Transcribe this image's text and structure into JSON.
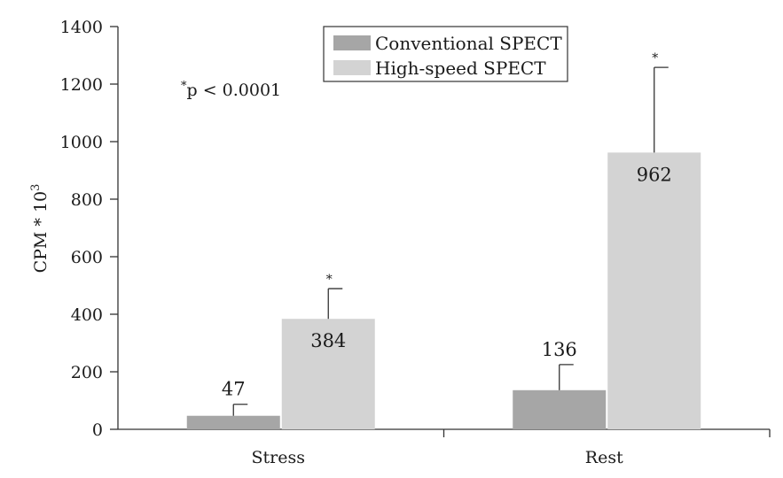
{
  "chart_data": {
    "type": "bar",
    "categories": [
      "Stress",
      "Rest"
    ],
    "series": [
      {
        "name": "Conventional SPECT",
        "values": [
          47,
          136
        ],
        "error_upper": [
          87,
          225
        ],
        "significance": [
          "",
          ""
        ],
        "color": "#a6a6a6"
      },
      {
        "name": "High-speed SPECT",
        "values": [
          384,
          962
        ],
        "error_upper": [
          489,
          1258
        ],
        "significance": [
          "*",
          "*"
        ],
        "color": "#d3d3d3"
      }
    ],
    "value_labels": [
      [
        "47",
        "136"
      ],
      [
        "384",
        "962"
      ]
    ],
    "ylabel_base": "CPM * 10",
    "ylabel_exp": "3",
    "ylim": [
      0,
      1400
    ],
    "yticks": [
      0,
      200,
      400,
      600,
      800,
      1000,
      1200,
      1400
    ],
    "annotation": {
      "star": "*",
      "text": "p < 0.0001"
    },
    "legend_position": "top-center",
    "grid": false
  }
}
